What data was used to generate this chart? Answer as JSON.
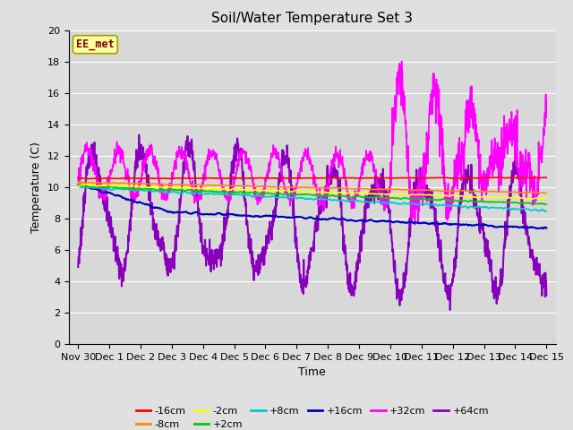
{
  "title": "Soil/Water Temperature Set 3",
  "xlabel": "Time",
  "ylabel": "Temperature (C)",
  "ylim": [
    0,
    20
  ],
  "yticks": [
    0,
    2,
    4,
    6,
    8,
    10,
    12,
    14,
    16,
    18,
    20
  ],
  "background_color": "#e0e0e0",
  "plot_bg_color": "#d8d8d8",
  "grid_color": "#ffffff",
  "annotation_text": "EE_met",
  "annotation_bg": "#ffffa0",
  "annotation_border": "#a0a000",
  "annotation_text_color": "#800000",
  "series": {
    "-16cm": {
      "color": "#ff0000",
      "lw": 1.2
    },
    "-8cm": {
      "color": "#ff8800",
      "lw": 1.2
    },
    "-2cm": {
      "color": "#ffff00",
      "lw": 1.2
    },
    "+2cm": {
      "color": "#00cc00",
      "lw": 1.2
    },
    "+8cm": {
      "color": "#00cccc",
      "lw": 1.2
    },
    "+16cm": {
      "color": "#0000bb",
      "lw": 1.5
    },
    "+32cm": {
      "color": "#ff00ff",
      "lw": 1.2
    },
    "+64cm": {
      "color": "#8800bb",
      "lw": 1.5
    }
  },
  "legend_order": [
    "-16cm",
    "-8cm",
    "-2cm",
    "+2cm",
    "+8cm",
    "+16cm",
    "+32cm",
    "+64cm"
  ]
}
